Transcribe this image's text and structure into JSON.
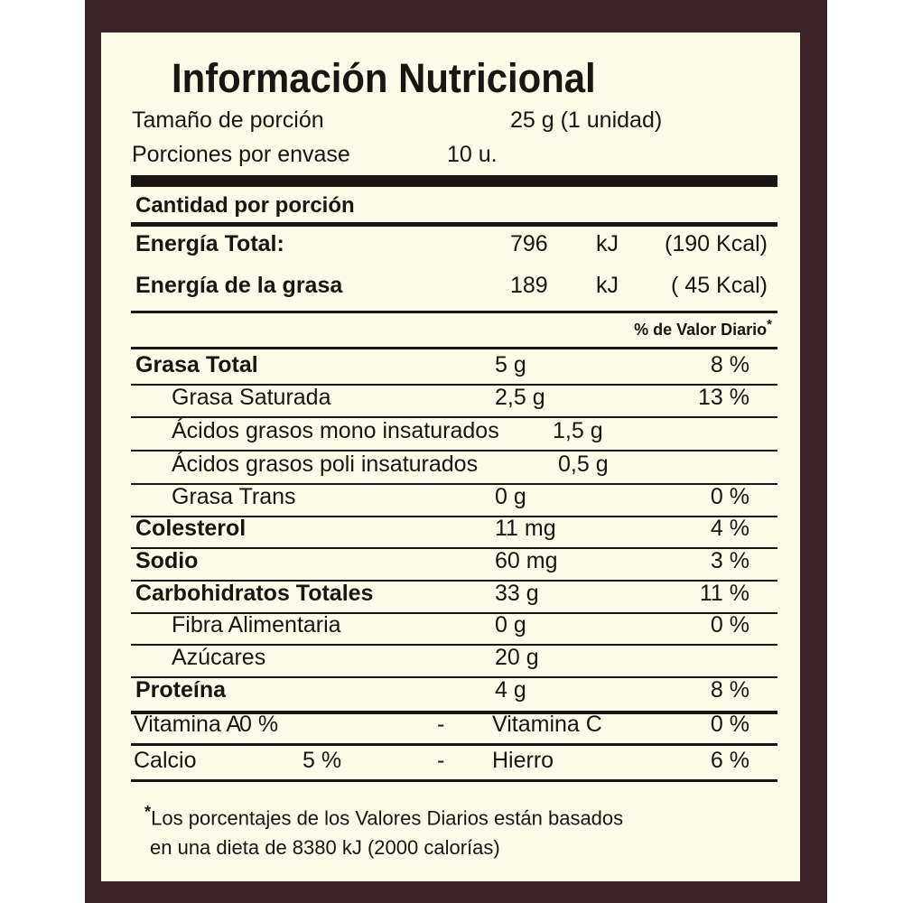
{
  "title": "Información Nutricional",
  "serving": {
    "size_label": "Tamaño de porción",
    "size_value": "25 g (1 unidad)",
    "per_pack_label": "Porciones por envase",
    "per_pack_value": "10 u."
  },
  "amount_per_serving": "Cantidad por porción",
  "energy": [
    {
      "label": "Energía Total:",
      "kj": "796",
      "unit": "kJ",
      "kcal": "(190 Kcal)"
    },
    {
      "label": "Energía de la grasa",
      "kj": "189",
      "unit": "kJ",
      "kcal": "( 45 Kcal)"
    }
  ],
  "dv_header": "% de Valor Diario",
  "dv_asterisk": "*",
  "nutrients": [
    {
      "name": "Grasa Total",
      "amount": "5 g",
      "dv": "8 %",
      "bold": true,
      "indent": false
    },
    {
      "name": "Grasa Saturada",
      "amount": "2,5 g",
      "dv": "13 %",
      "bold": false,
      "indent": true
    },
    {
      "name": "Ácidos grasos mono insaturados",
      "amount": "1,5 g",
      "dv": "",
      "bold": false,
      "indent": true
    },
    {
      "name": "Ácidos grasos poli insaturados",
      "amount": "0,5 g",
      "dv": "",
      "bold": false,
      "indent": true
    },
    {
      "name": "Grasa Trans",
      "amount": "0 g",
      "dv": "0 %",
      "bold": false,
      "indent": true
    },
    {
      "name": "Colesterol",
      "amount": "11 mg",
      "dv": "4 %",
      "bold": true,
      "indent": false
    },
    {
      "name": "Sodio",
      "amount": "60 mg",
      "dv": "3 %",
      "bold": true,
      "indent": false
    },
    {
      "name": "Carbohidratos Totales",
      "amount": "33 g",
      "dv": "11 %",
      "bold": true,
      "indent": false
    },
    {
      "name": "Fibra Alimentaria",
      "amount": "0 g",
      "dv": "0 %",
      "bold": false,
      "indent": true
    },
    {
      "name": "Azúcares",
      "amount": "20 g",
      "dv": "",
      "bold": false,
      "indent": true
    },
    {
      "name": "Proteína",
      "amount": "4 g",
      "dv": "8 %",
      "bold": true,
      "indent": false
    }
  ],
  "vitamins": [
    {
      "left_name": "Vitamina A",
      "left_dv": "0 %",
      "sep": "-",
      "right_name": "Vitamina C",
      "right_dv": "0 %"
    },
    {
      "left_name": "Calcio",
      "left_dv": "5 %",
      "sep": "-",
      "right_name": "Hierro",
      "right_dv": "6 %"
    }
  ],
  "footnote": {
    "asterisk": "*",
    "line1": "Los porcentajes de los Valores Diarios están basados",
    "line2": "en una dieta de 8380 kJ (2000 calorías)"
  }
}
